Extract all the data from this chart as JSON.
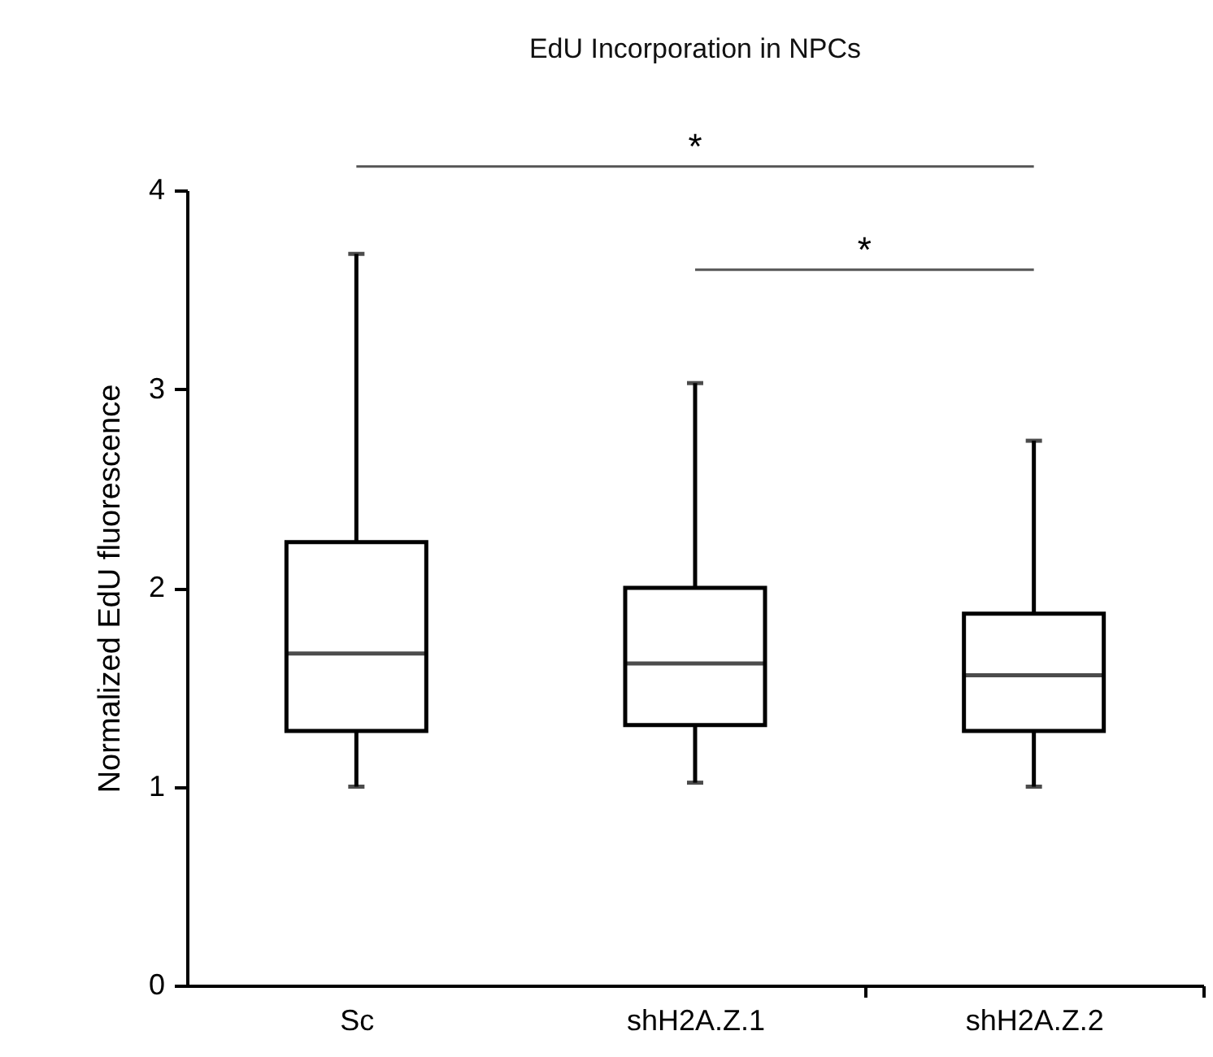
{
  "chart_data": {
    "type": "box",
    "title": "EdU Incorporation in NPCs",
    "ylabel": "Normalized EdU fluorescence",
    "categories": [
      "Sc",
      "shH2A.Z.1",
      "shH2A.Z.2"
    ],
    "boxes": [
      {
        "low": 1.0,
        "q1": 1.28,
        "median": 1.67,
        "q3": 2.23,
        "high": 3.68
      },
      {
        "low": 1.02,
        "q1": 1.31,
        "median": 1.62,
        "q3": 2.0,
        "high": 3.03
      },
      {
        "low": 1.0,
        "q1": 1.28,
        "median": 1.56,
        "q3": 1.87,
        "high": 2.74
      }
    ],
    "ylim": [
      0,
      4
    ],
    "yticks": [
      0,
      1,
      2,
      3,
      4
    ],
    "grid": false,
    "annotations": [
      "*",
      "*"
    ]
  }
}
